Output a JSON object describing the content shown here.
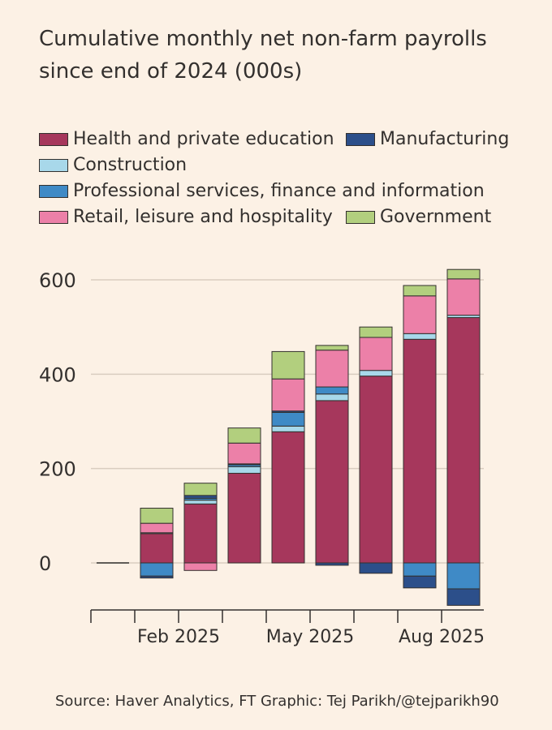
{
  "title": "Cumulative monthly net non-farm payrolls since end of 2024 (000s)",
  "source": "Source: Haver Analytics, FT Graphic: Tej Parikh/@tejparikh90",
  "colors": {
    "health": "#a6375c",
    "manufacturing": "#2c4f8a",
    "construction": "#a8d8ea",
    "professional": "#3f8ac6",
    "retail": "#ec80a8",
    "government": "#b2cf7e",
    "background": "#fcf1e5",
    "grid": "#d9cdc0",
    "text": "#33302e"
  },
  "legend": [
    {
      "key": "health",
      "label": "Health and private education"
    },
    {
      "key": "manufacturing",
      "label": "Manufacturing"
    },
    {
      "key": "construction",
      "label": "Construction"
    },
    {
      "key": "professional",
      "label": "Professional services, finance and information"
    },
    {
      "key": "retail",
      "label": "Retail, leisure and hospitality"
    },
    {
      "key": "government",
      "label": "Government"
    }
  ],
  "chart_data": {
    "type": "bar",
    "stacked": true,
    "title": "Cumulative monthly net non-farm payrolls since end of 2024 (000s)",
    "categories": [
      "Dec 2024",
      "Jan 2025",
      "Feb 2025",
      "Mar 2025",
      "Apr 2025",
      "May 2025",
      "Jun 2025",
      "Jul 2025",
      "Aug 2025"
    ],
    "x_tick_labels": [
      "Feb 2025",
      "May 2025",
      "Aug 2025"
    ],
    "ylim": [
      -95,
      610
    ],
    "yticks": [
      0,
      200,
      400,
      600
    ],
    "grid": true,
    "legend_position": "top",
    "series": [
      {
        "key": "health",
        "name": "Health and private education",
        "values": [
          0,
          62,
          125,
          190,
          278,
          344,
          396,
          474,
          520
        ]
      },
      {
        "key": "construction",
        "name": "Construction",
        "values": [
          0,
          2,
          8,
          14,
          12,
          14,
          12,
          12,
          5
        ]
      },
      {
        "key": "professional",
        "name": "Professional services, finance and information",
        "values": [
          0,
          -28,
          4,
          4,
          29,
          15,
          0,
          -28,
          -55
        ]
      },
      {
        "key": "manufacturing",
        "name": "Manufacturing",
        "values": [
          0,
          -4,
          6,
          2,
          3,
          -5,
          -22,
          -25,
          -35
        ]
      },
      {
        "key": "retail",
        "name": "Retail, leisure and hospitality",
        "values": [
          0,
          20,
          -16,
          44,
          68,
          78,
          70,
          80,
          77
        ]
      },
      {
        "key": "government",
        "name": "Government",
        "values": [
          0,
          32,
          26,
          32,
          58,
          10,
          22,
          22,
          20
        ]
      }
    ]
  }
}
